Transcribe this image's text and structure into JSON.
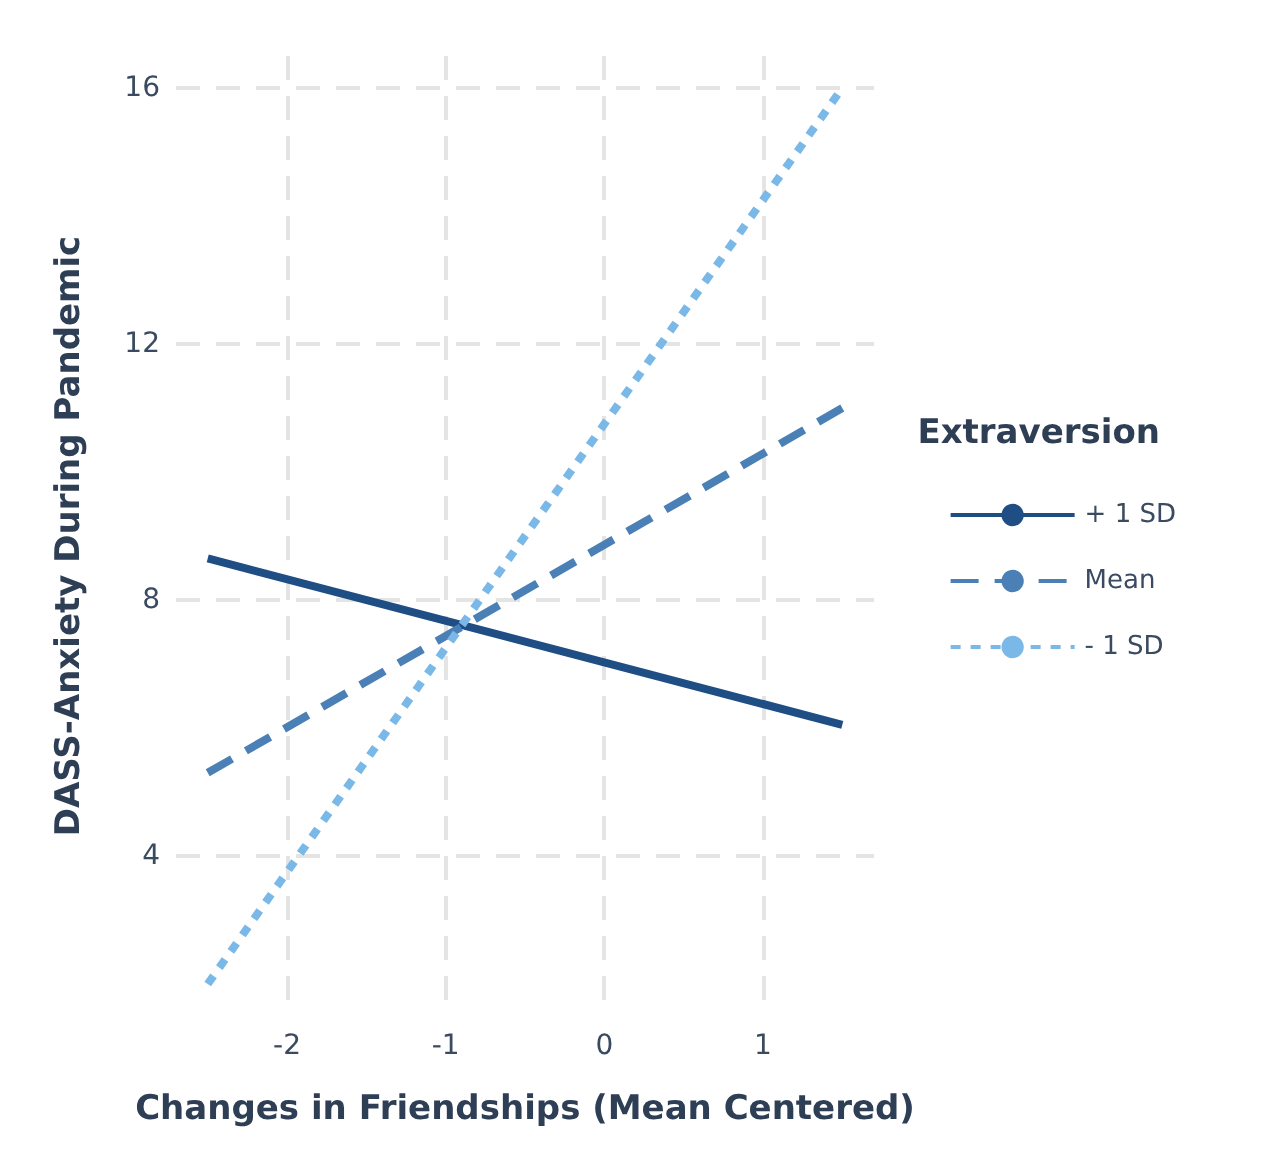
{
  "chart_data": {
    "type": "line",
    "xlabel": "Changes in Friendships (Mean Centered)",
    "ylabel": "DASS-Anxiety During Pandemic",
    "legend_title": "Extraversion",
    "x": [
      -2.5,
      1.5
    ],
    "series": [
      {
        "name": "+ 1 SD",
        "color": "#1f4e85",
        "line_style": "solid",
        "values": [
          8.65,
          6.05
        ]
      },
      {
        "name": "Mean",
        "color": "#4a80b5",
        "line_style": "dashed",
        "values": [
          5.3,
          11.0
        ]
      },
      {
        "name": "- 1 SD",
        "color": "#7ab8e8",
        "line_style": "dotted",
        "values": [
          2.0,
          16.0
        ]
      }
    ],
    "xlim": [
      -2.7,
      1.7
    ],
    "xticks": [
      -2,
      -1,
      0,
      1
    ],
    "ylim": [
      1.5,
      16.5
    ],
    "yticks": [
      4,
      8,
      12,
      16
    ],
    "grid": true,
    "legend": "right",
    "marker": "none"
  }
}
